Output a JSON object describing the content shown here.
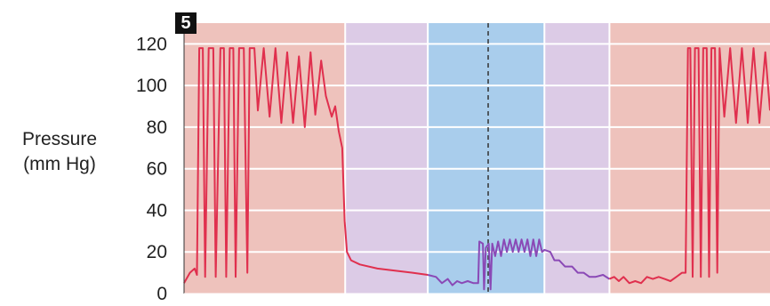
{
  "chart_data": {
    "type": "line",
    "panel_label": "5",
    "ylabel_line1": "Pressure",
    "ylabel_line2": "(mm Hg)",
    "ylim": [
      0,
      130
    ],
    "yticks": [
      0,
      20,
      40,
      60,
      80,
      100,
      120
    ],
    "xlim": [
      0,
      100
    ],
    "grid": true,
    "colors": {
      "background_outer": "#eec2bc",
      "background_middle": "#dccbe6",
      "background_inner": "#a9cdec",
      "line_high": "#e0304e",
      "line_low": "#8a49b6",
      "grid": "#ffffff",
      "marker": "#333333"
    },
    "regions": [
      {
        "x0": 0,
        "x1": 27.5,
        "fill": "#eec2bc"
      },
      {
        "x0": 27.5,
        "x1": 41.6,
        "fill": "#dccbe6"
      },
      {
        "x0": 41.6,
        "x1": 61.5,
        "fill": "#a9cdec"
      },
      {
        "x0": 61.5,
        "x1": 72.6,
        "fill": "#dccbe6"
      },
      {
        "x0": 72.6,
        "x1": 100,
        "fill": "#eec2bc"
      }
    ],
    "vertical_gridlines": [
      27.5,
      41.6,
      61.5,
      72.6
    ],
    "dashed_marker_x": 51.9,
    "series": [
      {
        "color": "#e0304e",
        "points": [
          [
            0,
            5
          ],
          [
            1,
            10
          ],
          [
            1.8,
            12
          ],
          [
            2.2,
            9
          ],
          [
            2.6,
            118
          ],
          [
            3.2,
            118
          ],
          [
            3.6,
            8
          ],
          [
            4.2,
            118
          ],
          [
            5,
            118
          ],
          [
            5.4,
            8
          ],
          [
            6.2,
            118
          ],
          [
            6.8,
            118
          ],
          [
            7.2,
            8
          ],
          [
            7.8,
            118
          ],
          [
            8.4,
            118
          ],
          [
            8.8,
            8
          ],
          [
            9.4,
            118
          ],
          [
            10.2,
            118
          ],
          [
            10.8,
            10
          ],
          [
            11.2,
            118
          ],
          [
            12,
            118
          ],
          [
            12.6,
            88
          ],
          [
            13.6,
            118
          ],
          [
            14.6,
            85
          ],
          [
            15.6,
            118
          ],
          [
            16.6,
            82
          ],
          [
            17.6,
            116
          ],
          [
            18.6,
            82
          ],
          [
            19.6,
            114
          ],
          [
            20.6,
            80
          ],
          [
            21.6,
            116
          ],
          [
            22.4,
            86
          ],
          [
            23.4,
            112
          ],
          [
            24.2,
            95
          ],
          [
            25.2,
            85
          ],
          [
            25.8,
            90
          ],
          [
            26.4,
            78
          ],
          [
            27,
            70
          ],
          [
            27.4,
            35
          ],
          [
            27.8,
            20
          ],
          [
            28.5,
            16
          ],
          [
            30,
            14
          ],
          [
            33,
            12
          ],
          [
            36,
            11
          ],
          [
            39,
            10
          ],
          [
            41.6,
            9
          ]
        ]
      },
      {
        "color": "#8a49b6",
        "points": [
          [
            41.6,
            9
          ],
          [
            43,
            8
          ],
          [
            44,
            5
          ],
          [
            45,
            7
          ],
          [
            45.8,
            4
          ],
          [
            46.6,
            6
          ],
          [
            47.4,
            5
          ],
          [
            48.4,
            6
          ],
          [
            49.4,
            5
          ],
          [
            50.2,
            5
          ],
          [
            50.4,
            25
          ],
          [
            51,
            24
          ],
          [
            51.2,
            2
          ],
          [
            51.5,
            22
          ],
          [
            52,
            24
          ],
          [
            52.3,
            2
          ],
          [
            52.6,
            24
          ],
          [
            53.1,
            18
          ],
          [
            53.6,
            25
          ],
          [
            54.1,
            18
          ],
          [
            54.6,
            26
          ],
          [
            55.1,
            20
          ],
          [
            55.6,
            26
          ],
          [
            56.1,
            20
          ],
          [
            56.6,
            26
          ],
          [
            57.1,
            20
          ],
          [
            57.6,
            26
          ],
          [
            58.1,
            20
          ],
          [
            58.6,
            26
          ],
          [
            59.1,
            18
          ],
          [
            59.6,
            26
          ],
          [
            60.1,
            18
          ],
          [
            60.6,
            26
          ],
          [
            61.1,
            20
          ],
          [
            61.5,
            21
          ],
          [
            62.5,
            20
          ],
          [
            63.2,
            16
          ],
          [
            64,
            16
          ],
          [
            65,
            13
          ],
          [
            66.2,
            13
          ],
          [
            67.2,
            10
          ],
          [
            68.2,
            10
          ],
          [
            69.2,
            8
          ],
          [
            70.2,
            8
          ],
          [
            71.5,
            9
          ],
          [
            72.6,
            7
          ]
        ]
      },
      {
        "color": "#e0304e",
        "points": [
          [
            72.6,
            7
          ],
          [
            73.4,
            8
          ],
          [
            74.2,
            6
          ],
          [
            75,
            8
          ],
          [
            76,
            5
          ],
          [
            77,
            6
          ],
          [
            78,
            5
          ],
          [
            79,
            8
          ],
          [
            80,
            7
          ],
          [
            81,
            8
          ],
          [
            82,
            7
          ],
          [
            83,
            6
          ],
          [
            84,
            8
          ],
          [
            85,
            10
          ],
          [
            85.6,
            10
          ],
          [
            86,
            118
          ],
          [
            86.4,
            118
          ],
          [
            86.8,
            8
          ],
          [
            87.2,
            118
          ],
          [
            87.8,
            118
          ],
          [
            88.2,
            8
          ],
          [
            88.6,
            118
          ],
          [
            89.2,
            118
          ],
          [
            89.6,
            8
          ],
          [
            90,
            118
          ],
          [
            90.6,
            118
          ],
          [
            91,
            10
          ],
          [
            91.4,
            118
          ],
          [
            92.2,
            85
          ],
          [
            93.2,
            118
          ],
          [
            94.2,
            82
          ],
          [
            95.2,
            118
          ],
          [
            96.2,
            82
          ],
          [
            97.2,
            118
          ],
          [
            98.2,
            82
          ],
          [
            99.2,
            116
          ],
          [
            100,
            88
          ]
        ]
      }
    ]
  }
}
